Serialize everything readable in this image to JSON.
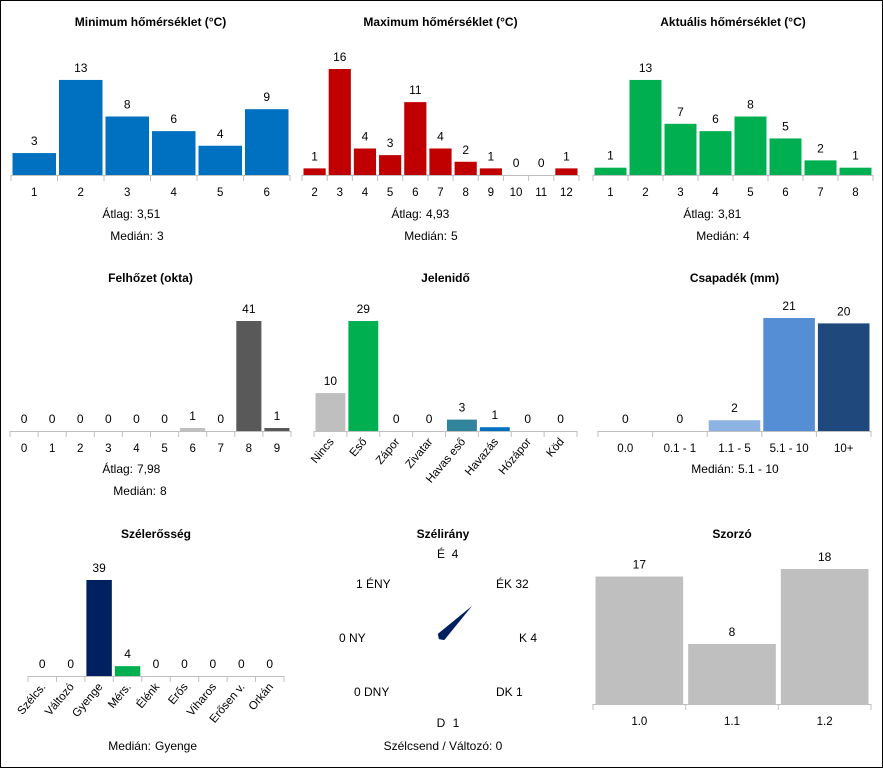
{
  "chart_data": [
    {
      "id": "tmin",
      "type": "bar",
      "title": "Minimum hőmérséklet (°C)",
      "categories": [
        "1",
        "2",
        "3",
        "4",
        "5",
        "6"
      ],
      "values": [
        3,
        13,
        8,
        6,
        4,
        9
      ],
      "colors": [
        "#0070c0"
      ],
      "ylim": [
        0,
        16
      ],
      "stats": [
        [
          "Átlag:",
          "3,51"
        ],
        [
          "Medián:",
          "3"
        ]
      ]
    },
    {
      "id": "tmax",
      "type": "bar",
      "title": "Maximum hőmérséklet (°C)",
      "categories": [
        "2",
        "3",
        "4",
        "5",
        "6",
        "7",
        "8",
        "9",
        "10",
        "11",
        "12"
      ],
      "values": [
        1,
        16,
        4,
        3,
        11,
        4,
        2,
        1,
        0,
        0,
        1
      ],
      "colors": [
        "#c00000"
      ],
      "ylim": [
        0,
        16
      ],
      "stats": [
        [
          "Átlag:",
          "4,93"
        ],
        [
          "Medián:",
          "5"
        ]
      ]
    },
    {
      "id": "tcur",
      "type": "bar",
      "title": "Aktuális hőmérséklet (°C)",
      "categories": [
        "1",
        "2",
        "3",
        "4",
        "5",
        "6",
        "7",
        "8"
      ],
      "values": [
        1,
        13,
        7,
        6,
        8,
        5,
        2,
        1
      ],
      "colors": [
        "#00b050"
      ],
      "ylim": [
        0,
        16
      ],
      "stats": [
        [
          "Átlag:",
          "3,81"
        ],
        [
          "Medián:",
          "4"
        ]
      ]
    },
    {
      "id": "cloud",
      "type": "bar",
      "title": "Felhőzet (okta)",
      "categories": [
        "0",
        "1",
        "2",
        "3",
        "4",
        "5",
        "6",
        "7",
        "8",
        "9"
      ],
      "values": [
        0,
        0,
        0,
        0,
        0,
        0,
        1,
        0,
        41,
        1
      ],
      "colors": [
        "#595959",
        "#595959",
        "#595959",
        "#595959",
        "#595959",
        "#595959",
        "#bfbfbf",
        "#595959",
        "#595959",
        "#595959"
      ],
      "ylim": [
        0,
        41
      ],
      "stats": [
        [
          "Átlag:",
          "7,98"
        ],
        [
          "Medián:",
          "8"
        ]
      ]
    },
    {
      "id": "wx",
      "type": "bar",
      "title": "Jelenidő",
      "categories": [
        "Nincs",
        "Eső",
        "Zápor",
        "Zivatar",
        "Havas eső",
        "Havazás",
        "Hózápor",
        "Köd"
      ],
      "values": [
        10,
        29,
        0,
        0,
        3,
        1,
        0,
        0
      ],
      "colors": [
        "#bfbfbf",
        "#00b050",
        "#00b050",
        "#7030a0",
        "#31849b",
        "#0070c0",
        "#8db3e2",
        "#a6a6a6"
      ],
      "rotate_labels": true,
      "ylim": [
        0,
        29
      ],
      "stats": []
    },
    {
      "id": "precip",
      "type": "bar",
      "title": "Csapadék (mm)",
      "categories": [
        "0.0",
        "0.1 - 1",
        "1.1 - 5",
        "5.1 - 10",
        "10+"
      ],
      "values": [
        0,
        0,
        2,
        21,
        20
      ],
      "colors": [
        "#dce6f2",
        "#c6d9f1",
        "#8db3e2",
        "#558ed5",
        "#1f497d"
      ],
      "ylim": [
        0,
        21
      ],
      "stats": [
        [
          "Medián:",
          "5.1 - 10"
        ]
      ]
    },
    {
      "id": "wind",
      "type": "bar",
      "title": "Szélerősség",
      "categories": [
        "Szélcs.",
        "Változó",
        "Gyenge",
        "Mérs.",
        "Élénk",
        "Erős",
        "Viharos",
        "Erősen v.",
        "Orkán"
      ],
      "values": [
        0,
        0,
        39,
        4,
        0,
        0,
        0,
        0,
        0
      ],
      "colors": [
        "#002060",
        "#002060",
        "#002060",
        "#00b050",
        "#ffc000",
        "#ff0000",
        "#c00000",
        "#7030a0",
        "#000000"
      ],
      "rotate_labels": true,
      "ylim": [
        0,
        39
      ],
      "stats": [
        [
          "Medián:",
          "Gyenge"
        ]
      ]
    },
    {
      "id": "dir",
      "type": "rose",
      "title": "Szélirány",
      "directions": [
        {
          "name": "É",
          "value": 4
        },
        {
          "name": "ÉK",
          "value": 32
        },
        {
          "name": "K",
          "value": 4
        },
        {
          "name": "DK",
          "value": 1
        },
        {
          "name": "D",
          "value": 1
        },
        {
          "name": "DNY",
          "value": 0
        },
        {
          "name": "NY",
          "value": 0
        },
        {
          "name": "ÉNY",
          "value": 1
        }
      ],
      "arrow_color": "#002060",
      "footer": "Szélcsend / Változó: 0"
    },
    {
      "id": "mult",
      "type": "bar",
      "title": "Szorzó",
      "categories": [
        "1.0",
        "1.1",
        "1.2"
      ],
      "values": [
        17,
        8,
        18
      ],
      "colors": [
        "#bfbfbf"
      ],
      "ylim": [
        0,
        18
      ],
      "stats": []
    }
  ]
}
